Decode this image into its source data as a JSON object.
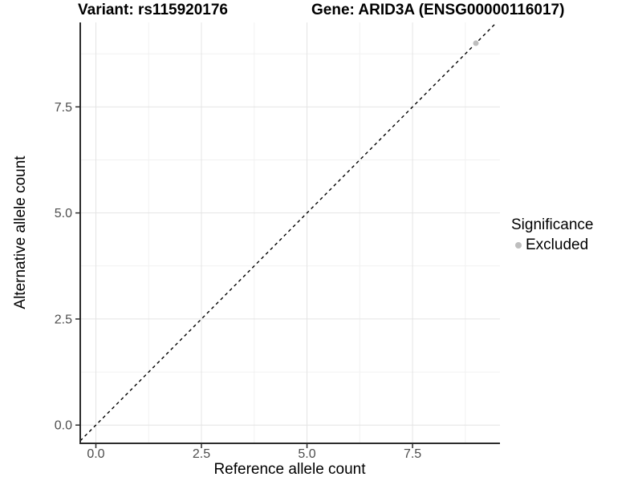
{
  "header": {
    "variant_title": "Variant: rs115920176",
    "gene_title": "Gene: ARID3A (ENSG00000116017)"
  },
  "legend": {
    "title": "Significance",
    "items": [
      {
        "label": "Excluded",
        "color": "#bebebe"
      }
    ]
  },
  "chart_data": {
    "type": "scatter",
    "title": "Variant: rs115920176 / Gene: ARID3A (ENSG00000116017)",
    "xlabel": "Reference allele count",
    "ylabel": "Alternative allele count",
    "xlim": [
      -0.37,
      9.57
    ],
    "ylim": [
      -0.43,
      9.49
    ],
    "x_ticks": [
      0.0,
      2.5,
      5.0,
      7.5
    ],
    "y_ticks": [
      0.0,
      2.5,
      5.0,
      7.5
    ],
    "x_minor_ticks": [
      1.25,
      3.75,
      6.25,
      8.75
    ],
    "y_minor_ticks": [
      1.25,
      3.75,
      6.25,
      8.75
    ],
    "grid": true,
    "legend_position": "right",
    "series": [
      {
        "name": "Excluded",
        "color": "#bebebe",
        "point_radius": 3.5,
        "points": [
          [
            9,
            9
          ]
        ]
      }
    ],
    "reference_line": {
      "type": "identity",
      "slope": 1,
      "intercept": 0,
      "style": "dashed",
      "color": "#000000"
    },
    "colors": {
      "axis_line": "#2b2b2b",
      "tick_mark": "#2b2b2b",
      "tick_label": "#4d4d4d",
      "grid_major": "#e4e4e4",
      "grid_minor": "#f1f1f1",
      "background": "#ffffff"
    }
  }
}
